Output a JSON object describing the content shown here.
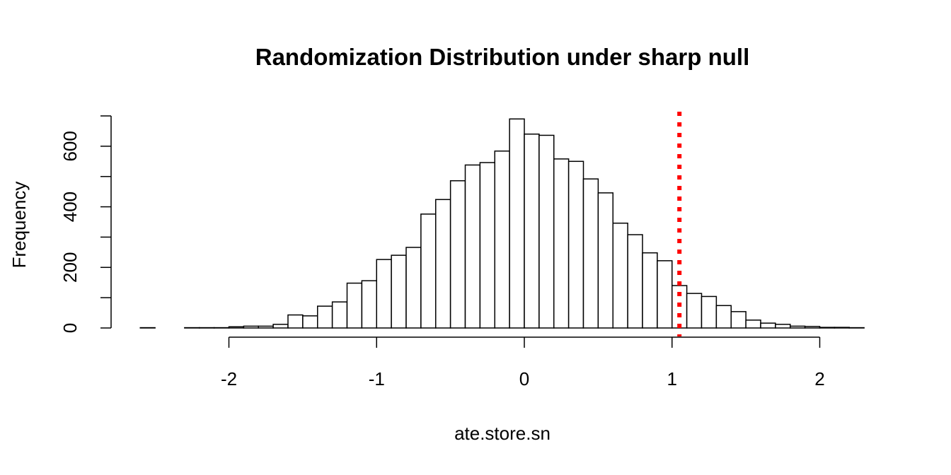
{
  "chart_data": {
    "type": "histogram",
    "title": "Randomization Distribution under sharp null",
    "xlabel": "ate.store.sn",
    "ylabel": "Frequency",
    "bin_width": 0.1,
    "bin_start": -2.6,
    "counts": [
      1,
      0,
      0,
      1,
      1,
      1,
      4,
      6,
      6,
      12,
      43,
      40,
      72,
      86,
      148,
      156,
      226,
      240,
      266,
      376,
      424,
      486,
      538,
      546,
      584,
      690,
      640,
      636,
      558,
      550,
      492,
      446,
      346,
      308,
      248,
      222,
      140,
      114,
      104,
      74,
      54,
      26,
      16,
      12,
      6,
      5,
      2,
      2,
      1
    ],
    "xlim": [
      -2.6,
      2.3
    ],
    "ylim": [
      0,
      700
    ],
    "x_ticks": [
      -2,
      -1,
      0,
      1,
      2
    ],
    "x_tick_labels": [
      "-2",
      "-1",
      "0",
      "1",
      "2"
    ],
    "y_ticks": [
      0,
      100,
      200,
      300,
      400,
      500,
      600,
      700
    ],
    "y_tick_labels": [
      "0",
      "200",
      "400",
      "600"
    ],
    "y_tick_label_values": [
      0,
      200,
      400,
      600
    ],
    "reference_line": {
      "x": 1.05,
      "color": "#ff0000",
      "style": "dotted"
    },
    "grid": false,
    "legend": "none"
  }
}
